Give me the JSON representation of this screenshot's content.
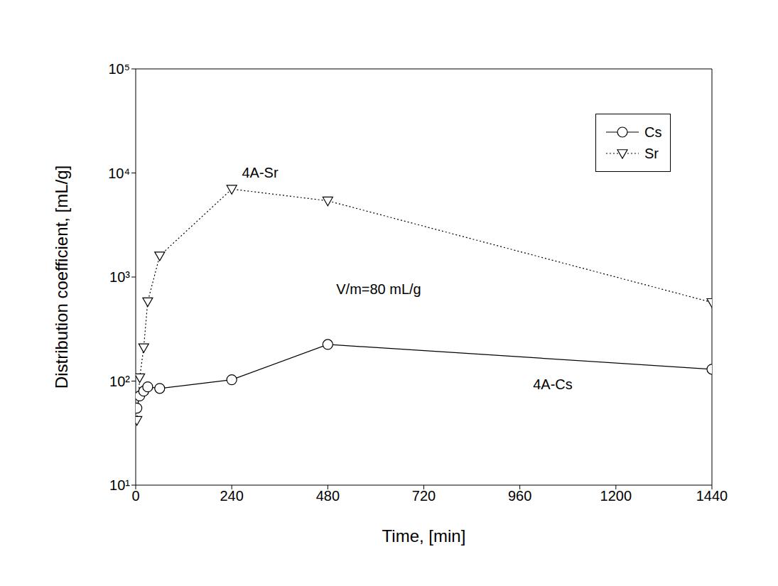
{
  "chart_data": {
    "type": "line",
    "x_label": "Time, [min]",
    "y_label": "Distribution coefficient, [mL/g]",
    "xlim": [
      0,
      1440
    ],
    "xticks": [
      0,
      240,
      480,
      720,
      960,
      1200,
      1440
    ],
    "ylim": [
      10,
      100000
    ],
    "yticks": [
      {
        "value": 10,
        "label": "10¹"
      },
      {
        "value": 100,
        "label": "10²"
      },
      {
        "value": 1000,
        "label": "10³"
      },
      {
        "value": 10000,
        "label": "10⁴"
      },
      {
        "value": 100000,
        "label": "10⁵"
      }
    ],
    "log": "y",
    "grid": false,
    "legend": "upper right",
    "annotations": [
      "4A-Sr",
      "V/m=80 mL/g",
      "4A-Cs"
    ],
    "series": [
      {
        "name": "Cs",
        "color": "#000000",
        "marker": "circle",
        "line_style": "solid",
        "x": [
          3,
          10,
          20,
          30,
          60,
          240,
          480,
          1440
        ],
        "values": [
          55,
          72,
          80,
          88,
          85,
          103,
          225,
          130
        ]
      },
      {
        "name": "Sr",
        "color": "#000000",
        "marker": "triangle-down",
        "line_style": "dotted",
        "x": [
          3,
          10,
          20,
          30,
          60,
          240,
          480,
          1440
        ],
        "values": [
          42,
          108,
          210,
          580,
          1600,
          7000,
          5400,
          570
        ]
      }
    ]
  }
}
